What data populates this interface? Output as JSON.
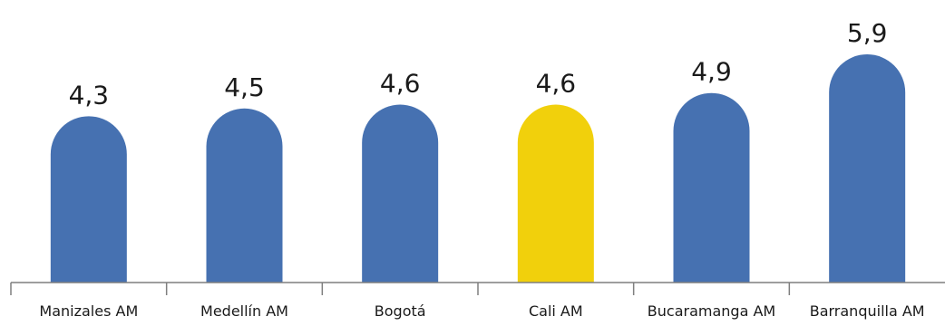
{
  "chart_data": {
    "type": "bar",
    "categories": [
      "Manizales AM",
      "Medellín AM",
      "Bogotá",
      "Cali AM",
      "Bucaramanga AM",
      "Barranquilla AM"
    ],
    "values": [
      4.3,
      4.5,
      4.6,
      4.6,
      4.9,
      5.9
    ],
    "value_labels": [
      "4,3",
      "4,5",
      "4,6",
      "4,6",
      "4,9",
      "5,9"
    ],
    "title": "",
    "xlabel": "",
    "ylabel": "",
    "ylim": [
      0,
      5.9
    ],
    "grid": false,
    "legend": "none",
    "colors": {
      "default": "#4671B1",
      "highlight": "#F1D00C",
      "axis": "#7F7F7F",
      "text": "#1A1A1A"
    },
    "highlight_index": 3
  }
}
